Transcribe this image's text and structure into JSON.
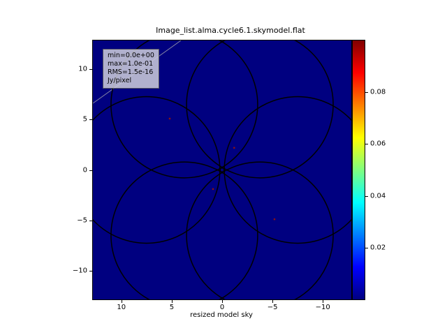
{
  "title": "Image_list.alma.cycle6.1.skymodel.flat",
  "stats_box": {
    "line1": "min=0.0e+00",
    "line2": "max=1.0e-01",
    "line3": "RMS=1.5e-16",
    "line4": "Jy/pixel",
    "bg_color": "rgba(201,201,216,0.88)"
  },
  "axes": {
    "xlabel": "resized model sky"
  },
  "chart_data": {
    "type": "heatmap",
    "title": "Image_list.alma.cycle6.1.skymodel.flat",
    "xlabel": "resized model sky",
    "ylabel": "",
    "x_axis": {
      "range": [
        12.85,
        -12.85
      ],
      "ticks": [
        10,
        5,
        0,
        -5,
        -10
      ],
      "tick_labels": [
        "10",
        "5",
        "0",
        "−5",
        "−10"
      ]
    },
    "y_axis": {
      "range": [
        -12.85,
        12.85
      ],
      "ticks": [
        10,
        5,
        0,
        -5,
        -10
      ],
      "tick_labels": [
        "10",
        "5",
        "0",
        "−5",
        "−10"
      ]
    },
    "value_range": [
      0.0,
      0.1
    ],
    "background_value": 0.0,
    "units": "Jy/pixel",
    "stats": {
      "min": "0.0e+00",
      "max": "1.0e-01",
      "rms": "1.5e-16"
    },
    "colorbar": {
      "colormap": "jet",
      "range": [
        0.0,
        0.1
      ],
      "ticks": [
        0.02,
        0.04,
        0.06,
        0.08
      ],
      "tick_labels": [
        "0.02",
        "0.04",
        "0.06",
        "0.08"
      ],
      "gradient_stops": [
        [
          "0%",
          "#000080"
        ],
        [
          "12.5%",
          "#0000ff"
        ],
        [
          "37.5%",
          "#00ffff"
        ],
        [
          "62.5%",
          "#ffff00"
        ],
        [
          "87.5%",
          "#ff0000"
        ],
        [
          "100%",
          "#800000"
        ]
      ]
    },
    "pointing_circles": {
      "count": 6,
      "center_distance": 7.5,
      "radius": 7.28,
      "angles_deg": [
        0,
        60,
        120,
        180,
        240,
        300
      ]
    },
    "point_sources": [
      {
        "x": 5.2,
        "y": 5.1
      },
      {
        "x": -1.2,
        "y": 2.2
      },
      {
        "x": 0.9,
        "y": -1.9
      },
      {
        "x": -5.2,
        "y": -4.9
      },
      {
        "x": 0.0,
        "y": 0.0
      }
    ],
    "colors": {
      "background": "#000080",
      "circle_stroke": "#000000",
      "source_dot": "#8b1212",
      "glint_line": "#efefc0"
    }
  }
}
